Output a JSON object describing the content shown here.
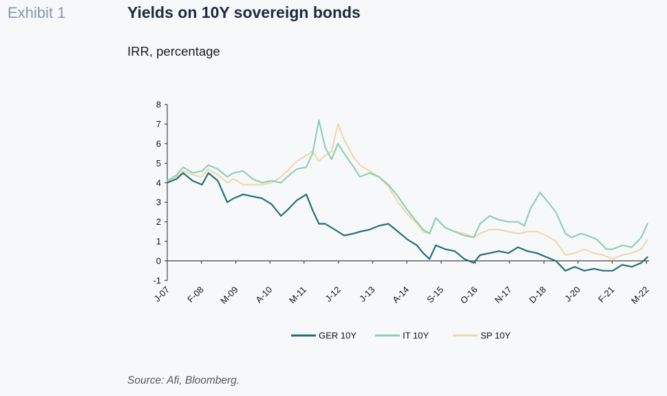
{
  "header": {
    "exhibit_label": "Exhibit 1",
    "title": "Yields on 10Y sovereign bonds",
    "subtitle": "IRR, percentage"
  },
  "footer": {
    "source": "Source: Afi, Bloomberg."
  },
  "chart_data": {
    "type": "line",
    "title": "Yields on 10Y sovereign bonds",
    "ylabel": "IRR, percentage",
    "ylim": [
      -1,
      8
    ],
    "yticks": [
      "8",
      "7",
      "6",
      "5",
      "4",
      "3",
      "2",
      "1",
      "0",
      "-1"
    ],
    "xlim": [
      2007.0,
      2022.25
    ],
    "xtick_labels": [
      "J-07",
      "F-08",
      "M-09",
      "A-10",
      "M-11",
      "J-12",
      "J-13",
      "A-14",
      "S-15",
      "O-16",
      "N-17",
      "D-18",
      "J-20",
      "F-21",
      "M-22"
    ],
    "xtick_dates": [
      2007.0,
      2008.08,
      2009.17,
      2010.25,
      2011.33,
      2012.42,
      2013.5,
      2014.58,
      2015.67,
      2016.75,
      2017.83,
      2018.92,
      2020.0,
      2021.08,
      2022.17
    ],
    "legend_position": "bottom",
    "colors": {
      "GER 10Y": "#1f6e76",
      "IT 10Y": "#8fd0b4",
      "SP 10Y": "#eed9ad"
    },
    "series": [
      {
        "name": "GER 10Y",
        "x": [
          2007.0,
          2007.3,
          2007.5,
          2007.8,
          2008.1,
          2008.3,
          2008.6,
          2008.9,
          2009.1,
          2009.4,
          2009.7,
          2010.0,
          2010.3,
          2010.6,
          2010.8,
          2011.1,
          2011.4,
          2011.6,
          2011.8,
          2012.0,
          2012.3,
          2012.6,
          2012.9,
          2013.1,
          2013.4,
          2013.7,
          2014.0,
          2014.3,
          2014.6,
          2014.9,
          2015.1,
          2015.3,
          2015.5,
          2015.8,
          2016.1,
          2016.4,
          2016.7,
          2016.9,
          2017.2,
          2017.5,
          2017.8,
          2018.1,
          2018.4,
          2018.7,
          2019.0,
          2019.3,
          2019.6,
          2019.9,
          2020.2,
          2020.5,
          2020.8,
          2021.1,
          2021.4,
          2021.7,
          2022.0,
          2022.2
        ],
        "y": [
          4.0,
          4.2,
          4.5,
          4.1,
          3.9,
          4.5,
          4.1,
          3.0,
          3.2,
          3.4,
          3.3,
          3.2,
          2.9,
          2.3,
          2.6,
          3.1,
          3.4,
          2.6,
          1.9,
          1.9,
          1.6,
          1.3,
          1.4,
          1.5,
          1.6,
          1.8,
          1.9,
          1.5,
          1.1,
          0.8,
          0.4,
          0.1,
          0.8,
          0.6,
          0.5,
          0.1,
          -0.1,
          0.3,
          0.4,
          0.5,
          0.4,
          0.7,
          0.5,
          0.4,
          0.2,
          0.0,
          -0.5,
          -0.3,
          -0.5,
          -0.4,
          -0.5,
          -0.5,
          -0.2,
          -0.3,
          -0.1,
          0.2
        ]
      },
      {
        "name": "IT 10Y",
        "x": [
          2007.0,
          2007.3,
          2007.5,
          2007.8,
          2008.1,
          2008.3,
          2008.6,
          2008.9,
          2009.1,
          2009.4,
          2009.7,
          2010.0,
          2010.3,
          2010.6,
          2010.8,
          2011.1,
          2011.4,
          2011.6,
          2011.8,
          2011.9,
          2012.0,
          2012.2,
          2012.4,
          2012.6,
          2012.9,
          2013.1,
          2013.4,
          2013.7,
          2014.0,
          2014.3,
          2014.6,
          2014.9,
          2015.1,
          2015.3,
          2015.5,
          2015.8,
          2016.1,
          2016.4,
          2016.7,
          2016.9,
          2017.2,
          2017.5,
          2017.8,
          2018.1,
          2018.3,
          2018.5,
          2018.8,
          2019.0,
          2019.3,
          2019.6,
          2019.8,
          2020.1,
          2020.3,
          2020.6,
          2020.9,
          2021.1,
          2021.4,
          2021.7,
          2022.0,
          2022.2
        ],
        "y": [
          4.1,
          4.4,
          4.8,
          4.5,
          4.6,
          4.9,
          4.7,
          4.3,
          4.5,
          4.6,
          4.2,
          4.0,
          4.1,
          4.0,
          4.3,
          4.7,
          4.8,
          5.5,
          7.2,
          6.5,
          5.8,
          5.2,
          6.0,
          5.5,
          4.8,
          4.3,
          4.5,
          4.3,
          3.9,
          3.3,
          2.6,
          2.0,
          1.6,
          1.4,
          2.2,
          1.7,
          1.5,
          1.3,
          1.2,
          1.9,
          2.3,
          2.1,
          2.0,
          2.0,
          1.8,
          2.7,
          3.5,
          3.1,
          2.5,
          1.4,
          1.2,
          1.4,
          1.3,
          1.1,
          0.6,
          0.6,
          0.8,
          0.7,
          1.2,
          1.9
        ]
      },
      {
        "name": "SP 10Y",
        "x": [
          2007.0,
          2007.3,
          2007.5,
          2007.8,
          2008.1,
          2008.3,
          2008.6,
          2008.9,
          2009.1,
          2009.4,
          2009.7,
          2010.0,
          2010.3,
          2010.6,
          2010.8,
          2011.1,
          2011.4,
          2011.6,
          2011.8,
          2012.0,
          2012.2,
          2012.4,
          2012.6,
          2012.9,
          2013.1,
          2013.4,
          2013.7,
          2014.0,
          2014.3,
          2014.6,
          2014.9,
          2015.1,
          2015.3,
          2015.5,
          2015.8,
          2016.1,
          2016.4,
          2016.7,
          2016.9,
          2017.2,
          2017.5,
          2017.8,
          2018.1,
          2018.4,
          2018.7,
          2019.0,
          2019.3,
          2019.6,
          2019.9,
          2020.2,
          2020.5,
          2020.8,
          2021.1,
          2021.4,
          2021.7,
          2022.0,
          2022.2
        ],
        "y": [
          4.1,
          4.3,
          4.6,
          4.4,
          4.3,
          4.7,
          4.4,
          4.0,
          4.2,
          3.9,
          3.9,
          3.9,
          4.0,
          4.3,
          4.6,
          5.1,
          5.4,
          5.6,
          5.1,
          5.4,
          5.6,
          7.0,
          6.2,
          5.3,
          4.9,
          4.6,
          4.3,
          3.8,
          3.0,
          2.4,
          1.9,
          1.5,
          1.4,
          2.2,
          1.7,
          1.5,
          1.4,
          1.2,
          1.4,
          1.6,
          1.6,
          1.5,
          1.4,
          1.5,
          1.5,
          1.3,
          1.0,
          0.3,
          0.4,
          0.6,
          0.4,
          0.3,
          0.1,
          0.3,
          0.4,
          0.6,
          1.1
        ]
      }
    ]
  }
}
